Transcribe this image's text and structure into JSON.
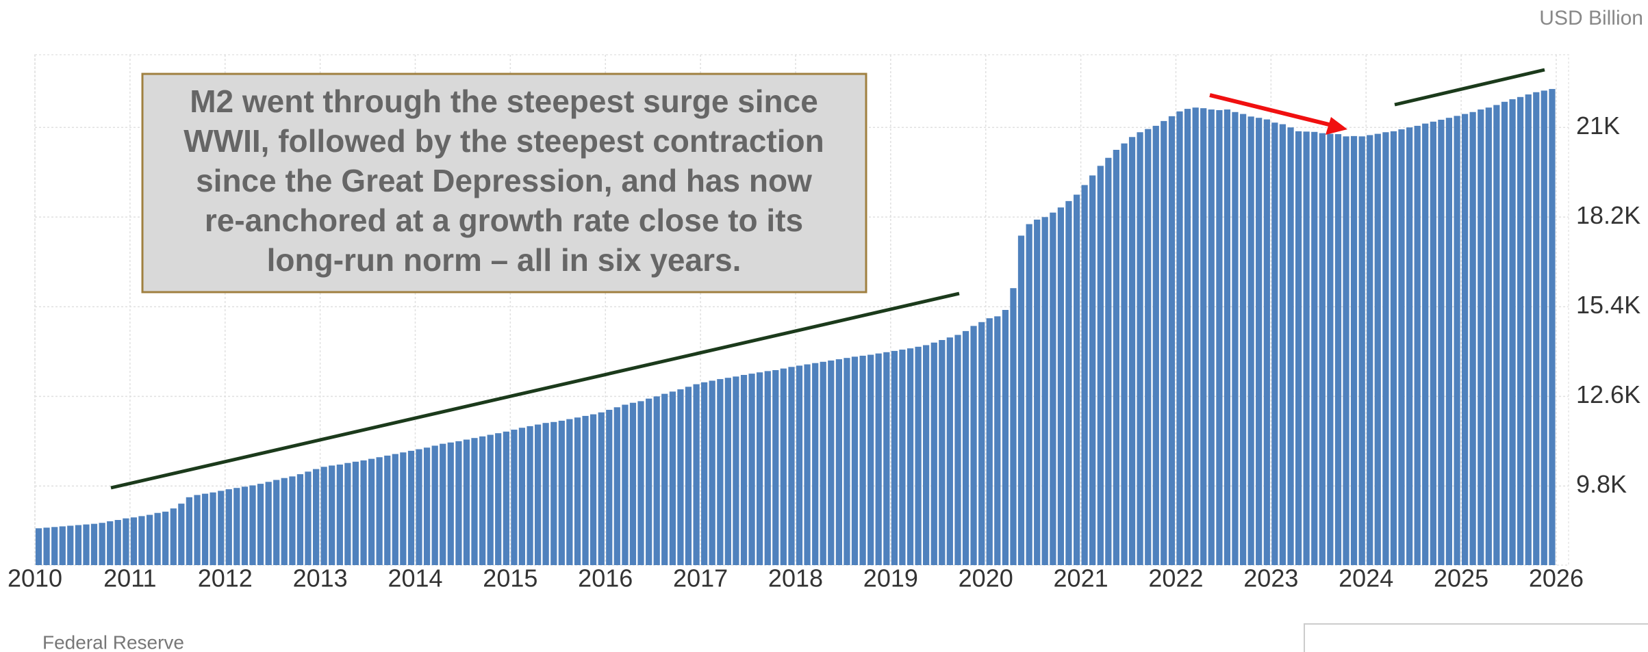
{
  "chart_data": {
    "type": "bar",
    "unit_label": "USD Billion",
    "source": "Federal Reserve",
    "annotation": [
      "M2 went through the steepest surge since",
      "WWII, followed by the steepest contraction",
      "since the Great Depression, and has now",
      "re-anchored at a growth rate close to its",
      "long-run norm – all in six years."
    ],
    "color": "#4f81bd",
    "grid": true,
    "xlim": [
      2010,
      2026.13
    ],
    "xticks": [
      2010,
      2011,
      2012,
      2013,
      2014,
      2015,
      2016,
      2017,
      2018,
      2019,
      2020,
      2021,
      2022,
      2023,
      2024,
      2025,
      2026
    ],
    "ylim": [
      7330,
      23270
    ],
    "yticks": [
      {
        "value": 9800,
        "label": "9.8K"
      },
      {
        "value": 12600,
        "label": "12.6K"
      },
      {
        "value": 15400,
        "label": "15.4K"
      },
      {
        "value": 18200,
        "label": "18.2K"
      },
      {
        "value": 21000,
        "label": "21K"
      }
    ],
    "x": [
      2010,
      2010.083,
      2010.167,
      2010.25,
      2010.333,
      2010.417,
      2010.5,
      2010.583,
      2010.667,
      2010.75,
      2010.833,
      2010.917,
      2011,
      2011.083,
      2011.167,
      2011.25,
      2011.333,
      2011.417,
      2011.5,
      2011.583,
      2011.667,
      2011.75,
      2011.833,
      2011.917,
      2012,
      2012.083,
      2012.167,
      2012.25,
      2012.333,
      2012.417,
      2012.5,
      2012.583,
      2012.667,
      2012.75,
      2012.833,
      2012.917,
      2013,
      2013.083,
      2013.167,
      2013.25,
      2013.333,
      2013.417,
      2013.5,
      2013.583,
      2013.667,
      2013.75,
      2013.833,
      2013.917,
      2014,
      2014.083,
      2014.167,
      2014.25,
      2014.333,
      2014.417,
      2014.5,
      2014.583,
      2014.667,
      2014.75,
      2014.833,
      2014.917,
      2015,
      2015.083,
      2015.167,
      2015.25,
      2015.333,
      2015.417,
      2015.5,
      2015.583,
      2015.667,
      2015.75,
      2015.833,
      2015.917,
      2016,
      2016.083,
      2016.167,
      2016.25,
      2016.333,
      2016.417,
      2016.5,
      2016.583,
      2016.667,
      2016.75,
      2016.833,
      2016.917,
      2017,
      2017.083,
      2017.167,
      2017.25,
      2017.333,
      2017.417,
      2017.5,
      2017.583,
      2017.667,
      2017.75,
      2017.833,
      2017.917,
      2018,
      2018.083,
      2018.167,
      2018.25,
      2018.333,
      2018.417,
      2018.5,
      2018.583,
      2018.667,
      2018.75,
      2018.833,
      2018.917,
      2019,
      2019.083,
      2019.167,
      2019.25,
      2019.333,
      2019.417,
      2019.5,
      2019.583,
      2019.667,
      2019.75,
      2019.833,
      2019.917,
      2020,
      2020.083,
      2020.167,
      2020.25,
      2020.333,
      2020.417,
      2020.5,
      2020.583,
      2020.667,
      2020.75,
      2020.833,
      2020.917,
      2021,
      2021.083,
      2021.167,
      2021.25,
      2021.333,
      2021.417,
      2021.5,
      2021.583,
      2021.667,
      2021.75,
      2021.833,
      2021.917,
      2022,
      2022.083,
      2022.167,
      2022.25,
      2022.333,
      2022.417,
      2022.5,
      2022.583,
      2022.667,
      2022.75,
      2022.833,
      2022.917,
      2023,
      2023.083,
      2023.167,
      2023.25,
      2023.333,
      2023.417,
      2023.5,
      2023.583,
      2023.667,
      2023.75,
      2023.833,
      2023.917,
      2024,
      2024.083,
      2024.167,
      2024.25,
      2024.333,
      2024.417,
      2024.5,
      2024.583,
      2024.667,
      2024.75,
      2024.833,
      2024.917,
      2025,
      2025.083,
      2025.167,
      2025.25,
      2025.333,
      2025.417,
      2025.5,
      2025.583,
      2025.667,
      2025.75,
      2025.833,
      2025.917
    ],
    "values": [
      8480,
      8500,
      8520,
      8540,
      8560,
      8580,
      8600,
      8620,
      8650,
      8700,
      8740,
      8790,
      8820,
      8860,
      8900,
      8960,
      9000,
      9100,
      9250,
      9450,
      9520,
      9560,
      9600,
      9650,
      9700,
      9740,
      9780,
      9820,
      9870,
      9930,
      9990,
      10050,
      10100,
      10170,
      10250,
      10330,
      10400,
      10440,
      10470,
      10520,
      10560,
      10600,
      10650,
      10700,
      10750,
      10800,
      10850,
      10900,
      10950,
      11000,
      11060,
      11120,
      11160,
      11200,
      11250,
      11300,
      11350,
      11400,
      11450,
      11500,
      11560,
      11620,
      11670,
      11720,
      11770,
      11800,
      11840,
      11890,
      11940,
      11990,
      12040,
      12100,
      12180,
      12260,
      12340,
      12400,
      12450,
      12530,
      12600,
      12680,
      12750,
      12820,
      12900,
      12980,
      13040,
      13090,
      13140,
      13180,
      13220,
      13270,
      13310,
      13350,
      13390,
      13420,
      13470,
      13520,
      13560,
      13600,
      13640,
      13680,
      13720,
      13760,
      13800,
      13840,
      13870,
      13900,
      13940,
      13980,
      14020,
      14060,
      14100,
      14150,
      14200,
      14280,
      14360,
      14440,
      14520,
      14640,
      14800,
      14920,
      15040,
      15100,
      15300,
      15980,
      17620,
      17980,
      18120,
      18200,
      18340,
      18500,
      18700,
      18900,
      19200,
      19500,
      19800,
      20050,
      20300,
      20500,
      20700,
      20850,
      20950,
      21050,
      21200,
      21350,
      21500,
      21580,
      21620,
      21600,
      21560,
      21540,
      21560,
      21480,
      21420,
      21340,
      21300,
      21250,
      21150,
      21100,
      21000,
      20880,
      20870,
      20860,
      20820,
      20800,
      20790,
      20720,
      20730,
      20720,
      20760,
      20800,
      20850,
      20880,
      20940,
      21000,
      21050,
      21120,
      21180,
      21240,
      21300,
      21360,
      21420,
      21480,
      21560,
      21620,
      21700,
      21800,
      21880,
      21950,
      22030,
      22100,
      22150,
      22200
    ]
  }
}
